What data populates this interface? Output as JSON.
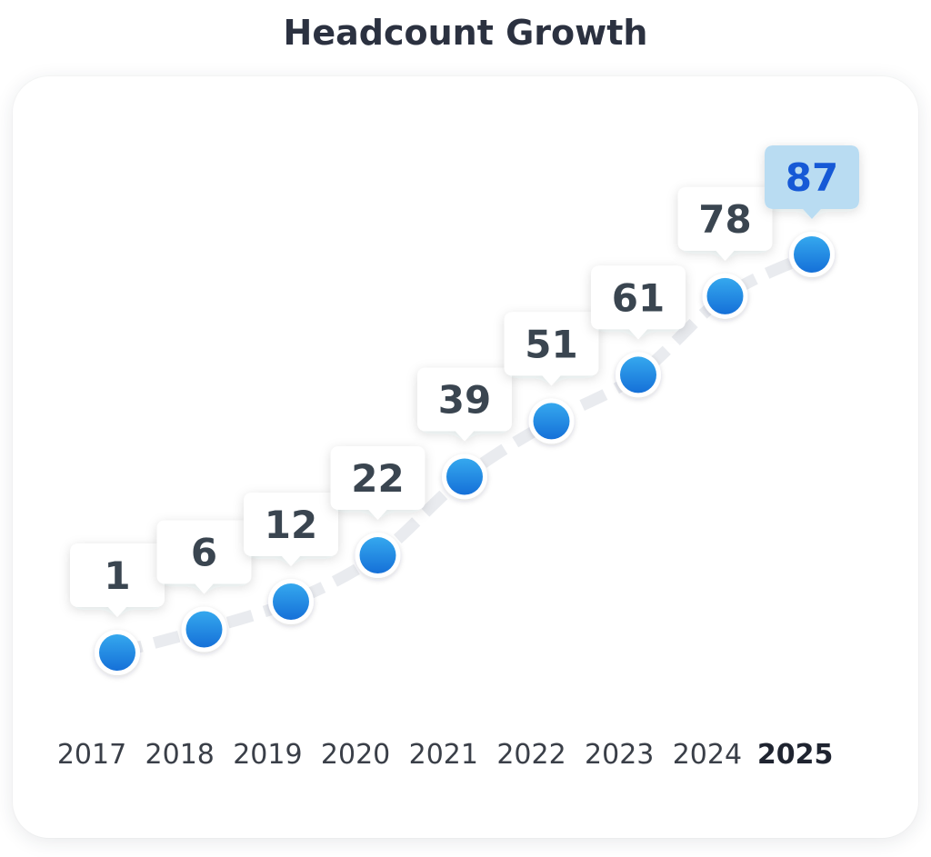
{
  "chart_data": {
    "type": "line",
    "title": "Headcount Growth",
    "categories": [
      "2017",
      "2018",
      "2019",
      "2020",
      "2021",
      "2022",
      "2023",
      "2024",
      "2025"
    ],
    "values": [
      1,
      6,
      12,
      22,
      39,
      51,
      61,
      78,
      87
    ],
    "highlight_index": 8,
    "xlabel": "",
    "ylabel": "",
    "ylim": [
      0,
      90
    ],
    "grid": false,
    "legend": "none"
  },
  "colors": {
    "point": "#1e88e5",
    "line": "#e9ebef",
    "label_text": "#3a4550",
    "highlight_bg": "#b9dcf2",
    "highlight_text": "#1659d6",
    "title": "#2b3140"
  }
}
